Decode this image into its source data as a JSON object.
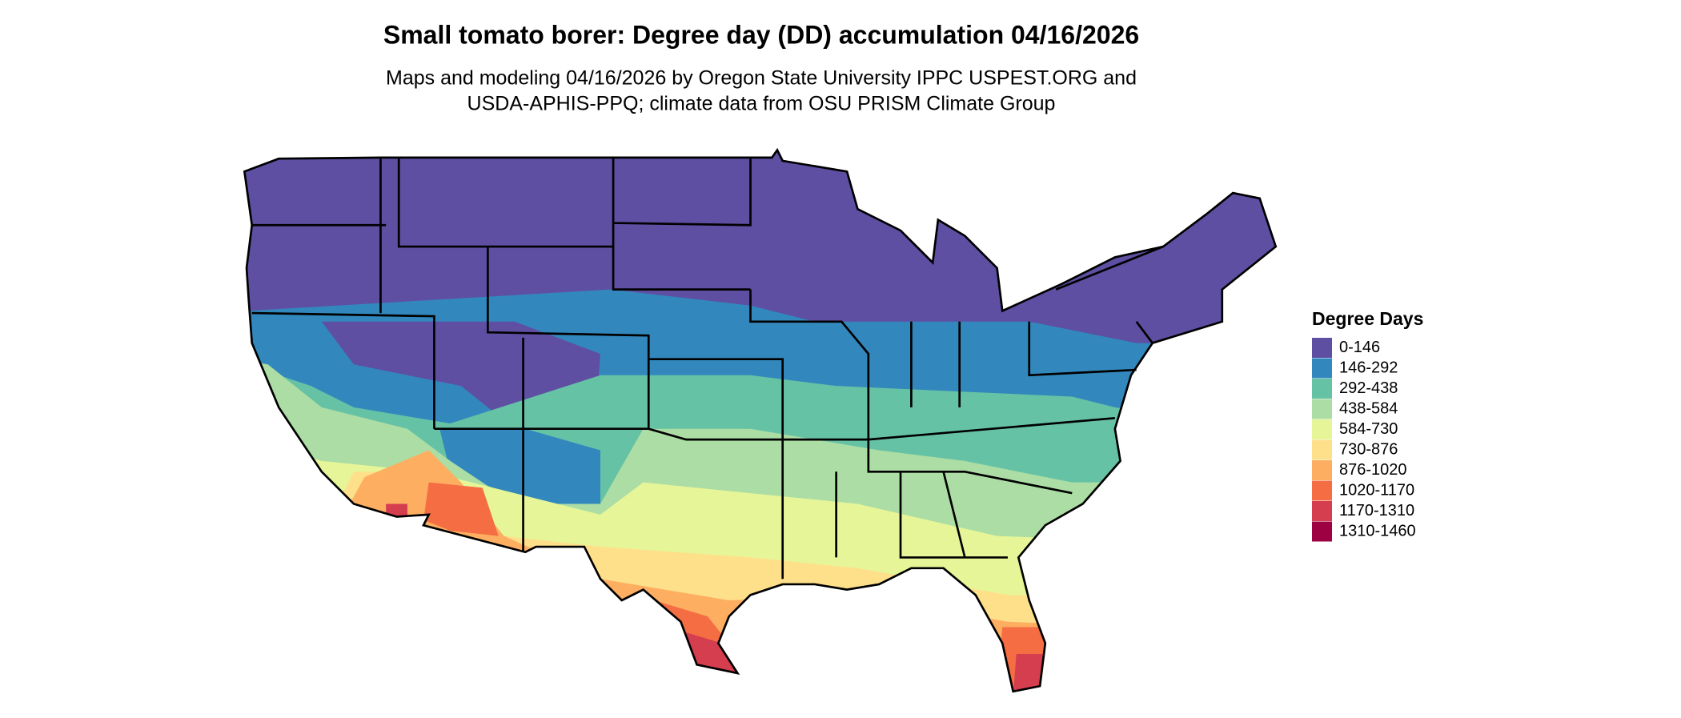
{
  "title": "Small tomato borer: Degree day (DD) accumulation 04/16/2026",
  "subtitle_lines": [
    "Maps and modeling 04/16/2026 by Oregon State University IPPC USPEST.ORG and",
    "USDA-APHIS-PPQ; climate data from OSU PRISM Climate Group"
  ],
  "legend": {
    "title": "Degree Days",
    "items": [
      {
        "label": "0-146",
        "color": "#5e4fa2"
      },
      {
        "label": "146-292",
        "color": "#3288bd"
      },
      {
        "label": "292-438",
        "color": "#66c2a5"
      },
      {
        "label": "438-584",
        "color": "#abdda4"
      },
      {
        "label": "584-730",
        "color": "#e6f598"
      },
      {
        "label": "730-876",
        "color": "#fee08b"
      },
      {
        "label": "876-1020",
        "color": "#fdae61"
      },
      {
        "label": "1020-1170",
        "color": "#f46d43"
      },
      {
        "label": "1170-1310",
        "color": "#d53e4f"
      },
      {
        "label": "1310-1460",
        "color": "#9e0142"
      }
    ]
  }
}
